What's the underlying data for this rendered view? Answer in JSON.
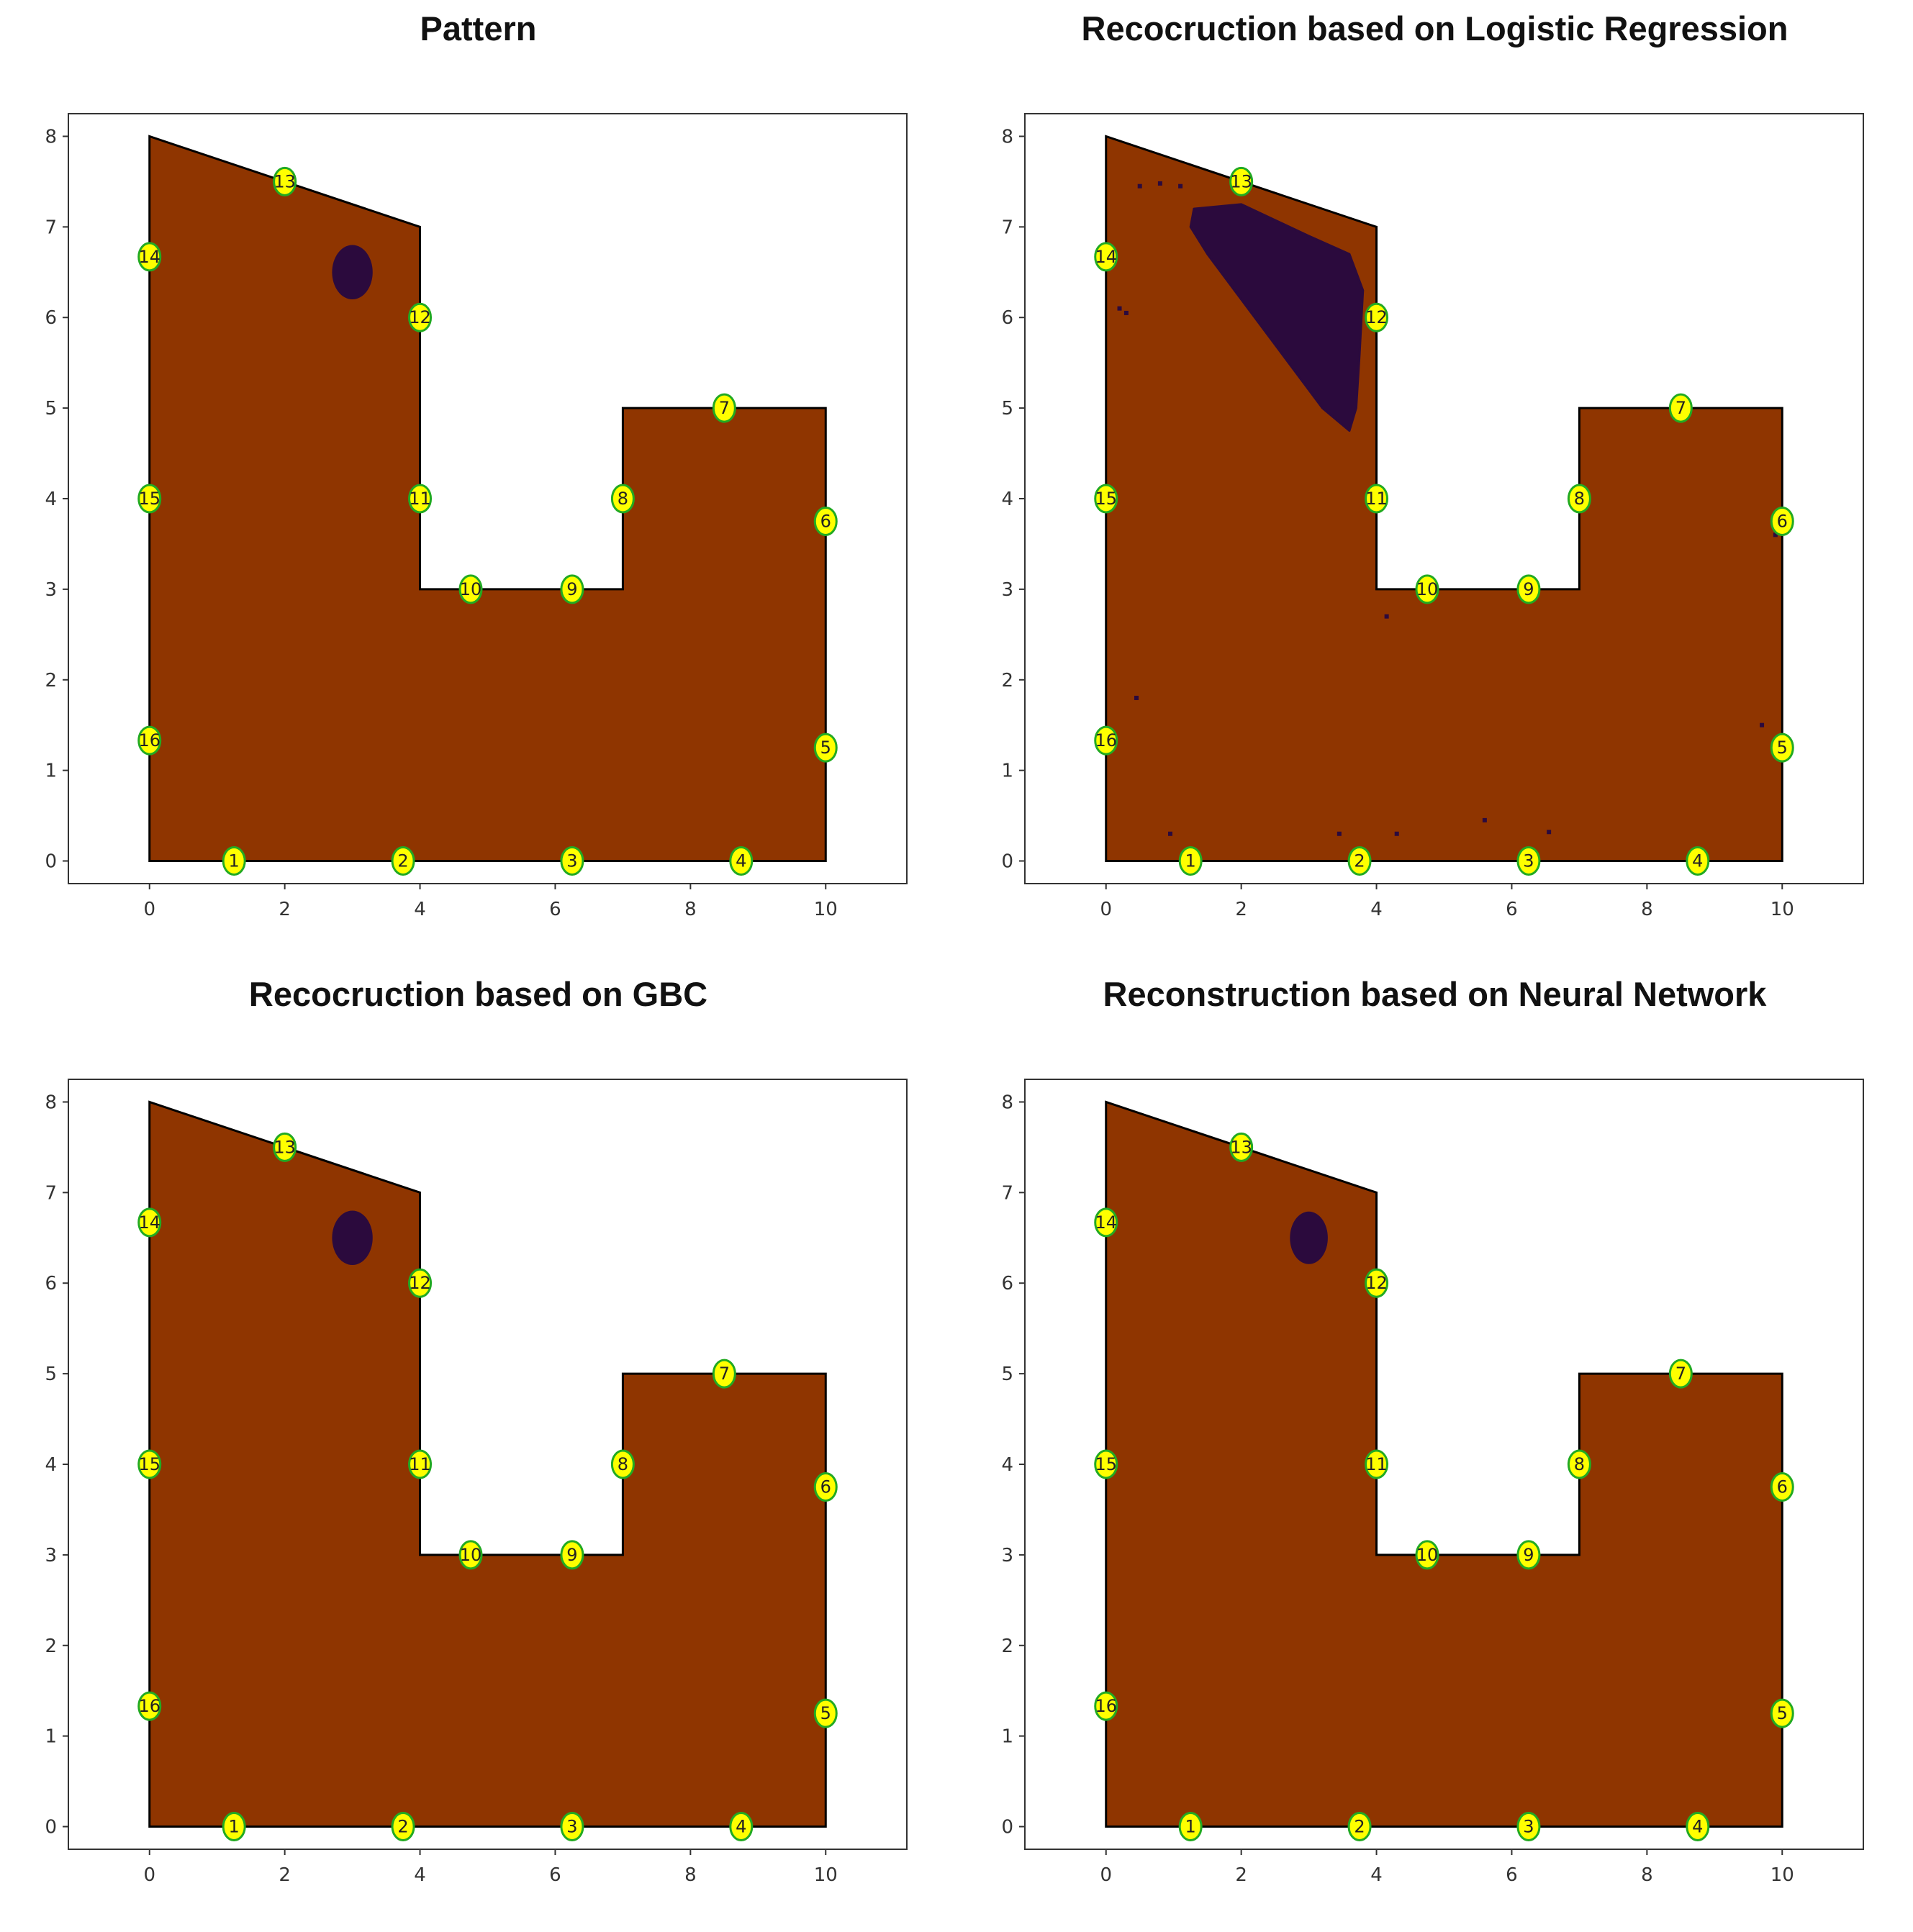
{
  "colors": {
    "domain": "#8F3500",
    "damage": "#2B0A3D",
    "sensor_fill": "#FFFF00",
    "sensor_stroke": "#22AA22",
    "outline": "#000000"
  },
  "chart_data": [
    {
      "type": "scatter",
      "title": "Pattern",
      "xlim": [
        -1.2,
        11.2
      ],
      "ylim": [
        -0.25,
        8.25
      ],
      "xticks": [
        0,
        2,
        4,
        6,
        8,
        10
      ],
      "yticks": [
        0,
        1,
        2,
        3,
        4,
        5,
        6,
        7,
        8
      ],
      "polygon": [
        [
          0,
          0
        ],
        [
          10,
          0
        ],
        [
          10,
          5
        ],
        [
          7,
          5
        ],
        [
          7,
          3
        ],
        [
          4,
          3
        ],
        [
          4,
          7
        ],
        [
          0,
          8
        ]
      ],
      "damage_blobs": [
        {
          "cx": 3.0,
          "cy": 6.5,
          "rx": 0.3,
          "ry": 0.3
        }
      ],
      "damage_specks": [],
      "sensors": [
        {
          "id": "1",
          "x": 1.25,
          "y": 0
        },
        {
          "id": "2",
          "x": 3.75,
          "y": 0
        },
        {
          "id": "3",
          "x": 6.25,
          "y": 0
        },
        {
          "id": "4",
          "x": 8.75,
          "y": 0
        },
        {
          "id": "5",
          "x": 10,
          "y": 1.25
        },
        {
          "id": "6",
          "x": 10,
          "y": 3.75
        },
        {
          "id": "7",
          "x": 8.5,
          "y": 5
        },
        {
          "id": "8",
          "x": 7,
          "y": 4
        },
        {
          "id": "9",
          "x": 6.25,
          "y": 3
        },
        {
          "id": "10",
          "x": 4.75,
          "y": 3
        },
        {
          "id": "11",
          "x": 4,
          "y": 4
        },
        {
          "id": "12",
          "x": 4,
          "y": 6
        },
        {
          "id": "13",
          "x": 2,
          "y": 7.5
        },
        {
          "id": "14",
          "x": 0,
          "y": 6.67
        },
        {
          "id": "15",
          "x": 0,
          "y": 4
        },
        {
          "id": "16",
          "x": 0,
          "y": 1.33
        }
      ]
    },
    {
      "type": "scatter",
      "title": "Recocruction based on Logistic Regression",
      "xlim": [
        -1.2,
        11.2
      ],
      "ylim": [
        -0.25,
        8.25
      ],
      "xticks": [
        0,
        2,
        4,
        6,
        8,
        10
      ],
      "yticks": [
        0,
        1,
        2,
        3,
        4,
        5,
        6,
        7,
        8
      ],
      "polygon": [
        [
          0,
          0
        ],
        [
          10,
          0
        ],
        [
          10,
          5
        ],
        [
          7,
          5
        ],
        [
          7,
          3
        ],
        [
          4,
          3
        ],
        [
          4,
          7
        ],
        [
          0,
          8
        ]
      ],
      "damage_blobs": [],
      "damage_region": [
        [
          1.3,
          7.2
        ],
        [
          2.0,
          7.25
        ],
        [
          3.0,
          6.9
        ],
        [
          3.6,
          6.7
        ],
        [
          3.8,
          6.3
        ],
        [
          3.75,
          5.6
        ],
        [
          3.7,
          5.0
        ],
        [
          3.6,
          4.75
        ],
        [
          3.2,
          5.0
        ],
        [
          2.6,
          5.6
        ],
        [
          2.0,
          6.2
        ],
        [
          1.5,
          6.7
        ],
        [
          1.25,
          7.0
        ]
      ],
      "damage_specks": [
        {
          "x": 0.2,
          "y": 6.1
        },
        {
          "x": 0.3,
          "y": 6.05
        },
        {
          "x": 0.5,
          "y": 7.45
        },
        {
          "x": 0.8,
          "y": 7.48
        },
        {
          "x": 1.1,
          "y": 7.45
        },
        {
          "x": 0.45,
          "y": 1.8
        },
        {
          "x": 0.95,
          "y": 0.3
        },
        {
          "x": 3.45,
          "y": 0.3
        },
        {
          "x": 4.3,
          "y": 0.3
        },
        {
          "x": 5.6,
          "y": 0.45
        },
        {
          "x": 6.55,
          "y": 0.32
        },
        {
          "x": 4.15,
          "y": 2.7
        },
        {
          "x": 9.7,
          "y": 1.5
        },
        {
          "x": 9.9,
          "y": 3.6
        }
      ],
      "sensors": [
        {
          "id": "1",
          "x": 1.25,
          "y": 0
        },
        {
          "id": "2",
          "x": 3.75,
          "y": 0
        },
        {
          "id": "3",
          "x": 6.25,
          "y": 0
        },
        {
          "id": "4",
          "x": 8.75,
          "y": 0
        },
        {
          "id": "5",
          "x": 10,
          "y": 1.25
        },
        {
          "id": "6",
          "x": 10,
          "y": 3.75
        },
        {
          "id": "7",
          "x": 8.5,
          "y": 5
        },
        {
          "id": "8",
          "x": 7,
          "y": 4
        },
        {
          "id": "9",
          "x": 6.25,
          "y": 3
        },
        {
          "id": "10",
          "x": 4.75,
          "y": 3
        },
        {
          "id": "11",
          "x": 4,
          "y": 4
        },
        {
          "id": "12",
          "x": 4,
          "y": 6
        },
        {
          "id": "13",
          "x": 2,
          "y": 7.5
        },
        {
          "id": "14",
          "x": 0,
          "y": 6.67
        },
        {
          "id": "15",
          "x": 0,
          "y": 4
        },
        {
          "id": "16",
          "x": 0,
          "y": 1.33
        }
      ]
    },
    {
      "type": "scatter",
      "title": "Recocruction based on GBC",
      "xlim": [
        -1.2,
        11.2
      ],
      "ylim": [
        -0.25,
        8.25
      ],
      "xticks": [
        0,
        2,
        4,
        6,
        8,
        10
      ],
      "yticks": [
        0,
        1,
        2,
        3,
        4,
        5,
        6,
        7,
        8
      ],
      "polygon": [
        [
          0,
          0
        ],
        [
          10,
          0
        ],
        [
          10,
          5
        ],
        [
          7,
          5
        ],
        [
          7,
          3
        ],
        [
          4,
          3
        ],
        [
          4,
          7
        ],
        [
          0,
          8
        ]
      ],
      "damage_blobs": [
        {
          "cx": 3.0,
          "cy": 6.5,
          "rx": 0.3,
          "ry": 0.3
        }
      ],
      "damage_specks": [],
      "sensors": [
        {
          "id": "1",
          "x": 1.25,
          "y": 0
        },
        {
          "id": "2",
          "x": 3.75,
          "y": 0
        },
        {
          "id": "3",
          "x": 6.25,
          "y": 0
        },
        {
          "id": "4",
          "x": 8.75,
          "y": 0
        },
        {
          "id": "5",
          "x": 10,
          "y": 1.25
        },
        {
          "id": "6",
          "x": 10,
          "y": 3.75
        },
        {
          "id": "7",
          "x": 8.5,
          "y": 5
        },
        {
          "id": "8",
          "x": 7,
          "y": 4
        },
        {
          "id": "9",
          "x": 6.25,
          "y": 3
        },
        {
          "id": "10",
          "x": 4.75,
          "y": 3
        },
        {
          "id": "11",
          "x": 4,
          "y": 4
        },
        {
          "id": "12",
          "x": 4,
          "y": 6
        },
        {
          "id": "13",
          "x": 2,
          "y": 7.5
        },
        {
          "id": "14",
          "x": 0,
          "y": 6.67
        },
        {
          "id": "15",
          "x": 0,
          "y": 4
        },
        {
          "id": "16",
          "x": 0,
          "y": 1.33
        }
      ]
    },
    {
      "type": "scatter",
      "title": "Reconstruction based on Neural Network",
      "xlim": [
        -1.2,
        11.2
      ],
      "ylim": [
        -0.25,
        8.25
      ],
      "xticks": [
        0,
        2,
        4,
        6,
        8,
        10
      ],
      "yticks": [
        0,
        1,
        2,
        3,
        4,
        5,
        6,
        7,
        8
      ],
      "polygon": [
        [
          0,
          0
        ],
        [
          10,
          0
        ],
        [
          10,
          5
        ],
        [
          7,
          5
        ],
        [
          7,
          3
        ],
        [
          4,
          3
        ],
        [
          4,
          7
        ],
        [
          0,
          8
        ]
      ],
      "damage_blobs": [
        {
          "cx": 3.0,
          "cy": 6.5,
          "rx": 0.28,
          "ry": 0.29
        }
      ],
      "damage_specks": [],
      "sensors": [
        {
          "id": "1",
          "x": 1.25,
          "y": 0
        },
        {
          "id": "2",
          "x": 3.75,
          "y": 0
        },
        {
          "id": "3",
          "x": 6.25,
          "y": 0
        },
        {
          "id": "4",
          "x": 8.75,
          "y": 0
        },
        {
          "id": "5",
          "x": 10,
          "y": 1.25
        },
        {
          "id": "6",
          "x": 10,
          "y": 3.75
        },
        {
          "id": "7",
          "x": 8.5,
          "y": 5
        },
        {
          "id": "8",
          "x": 7,
          "y": 4
        },
        {
          "id": "9",
          "x": 6.25,
          "y": 3
        },
        {
          "id": "10",
          "x": 4.75,
          "y": 3
        },
        {
          "id": "11",
          "x": 4,
          "y": 4
        },
        {
          "id": "12",
          "x": 4,
          "y": 6
        },
        {
          "id": "13",
          "x": 2,
          "y": 7.5
        },
        {
          "id": "14",
          "x": 0,
          "y": 6.67
        },
        {
          "id": "15",
          "x": 0,
          "y": 4
        },
        {
          "id": "16",
          "x": 0,
          "y": 1.33
        }
      ]
    }
  ]
}
